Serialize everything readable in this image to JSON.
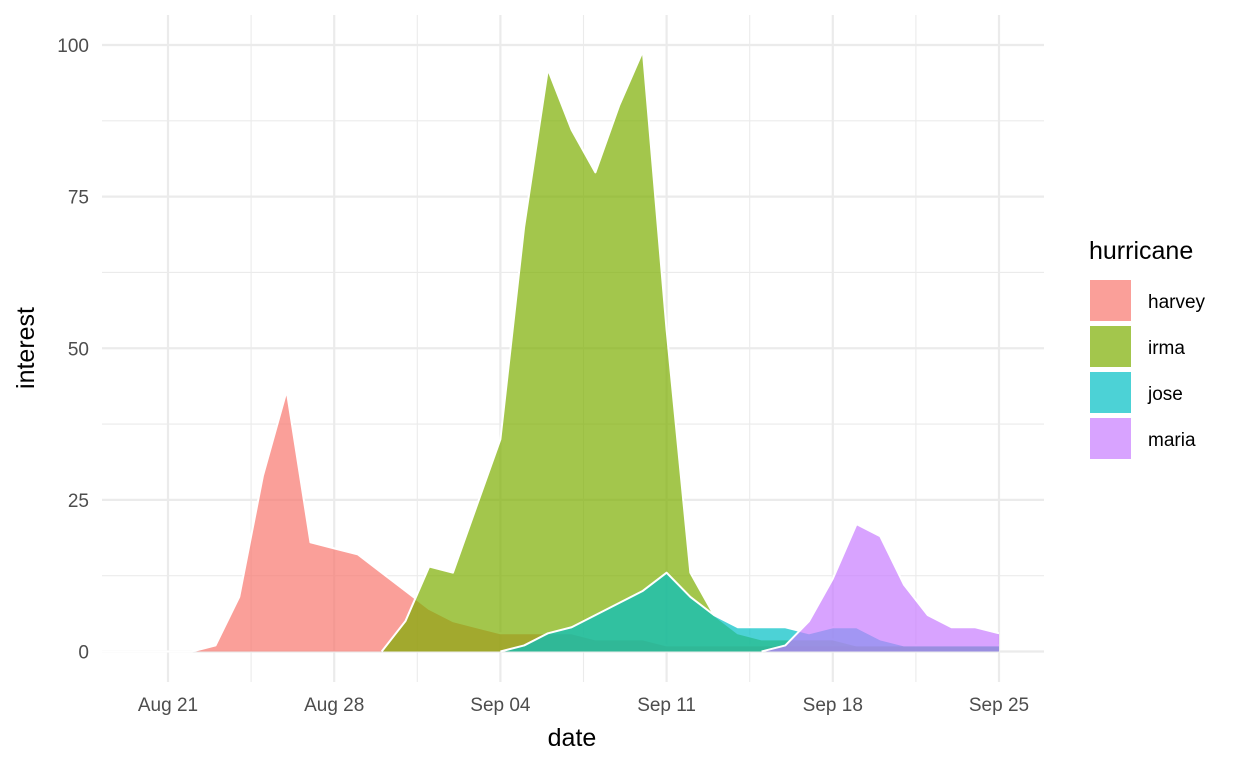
{
  "chart_data": {
    "type": "area",
    "title": "",
    "xlabel": "date",
    "ylabel": "interest",
    "xlim": [
      "2017-08-17",
      "2017-09-25"
    ],
    "ylim": [
      0,
      100
    ],
    "x_ticks": [
      {
        "date": "2017-08-21",
        "label": "Aug 21"
      },
      {
        "date": "2017-08-28",
        "label": "Aug 28"
      },
      {
        "date": "2017-09-04",
        "label": "Sep 04"
      },
      {
        "date": "2017-09-11",
        "label": "Sep 11"
      },
      {
        "date": "2017-09-18",
        "label": "Sep 18"
      },
      {
        "date": "2017-09-25",
        "label": "Sep 25"
      }
    ],
    "y_ticks": [
      {
        "value": 0,
        "label": "0"
      },
      {
        "value": 25,
        "label": "25"
      },
      {
        "value": 50,
        "label": "50"
      },
      {
        "value": 75,
        "label": "75"
      },
      {
        "value": 100,
        "label": "100"
      }
    ],
    "grid": true,
    "legend": {
      "title": "hurricane",
      "position": "right"
    },
    "series": [
      {
        "name": "harvey",
        "color": "#F8766D",
        "points": [
          [
            "2017-08-18",
            0
          ],
          [
            "2017-08-19",
            0
          ],
          [
            "2017-08-20",
            0
          ],
          [
            "2017-08-21",
            0
          ],
          [
            "2017-08-22",
            0
          ],
          [
            "2017-08-23",
            1
          ],
          [
            "2017-08-24",
            9
          ],
          [
            "2017-08-25",
            29
          ],
          [
            "2017-08-26",
            43
          ],
          [
            "2017-08-27",
            18
          ],
          [
            "2017-08-28",
            17
          ],
          [
            "2017-08-29",
            16
          ],
          [
            "2017-08-30",
            13
          ],
          [
            "2017-08-31",
            10
          ],
          [
            "2017-09-01",
            7
          ],
          [
            "2017-09-02",
            5
          ],
          [
            "2017-09-03",
            4
          ],
          [
            "2017-09-04",
            3
          ],
          [
            "2017-09-05",
            3
          ],
          [
            "2017-09-06",
            3
          ],
          [
            "2017-09-07",
            3
          ],
          [
            "2017-09-08",
            2
          ],
          [
            "2017-09-09",
            2
          ],
          [
            "2017-09-10",
            2
          ],
          [
            "2017-09-11",
            1
          ],
          [
            "2017-09-12",
            1
          ],
          [
            "2017-09-13",
            1
          ],
          [
            "2017-09-14",
            1
          ],
          [
            "2017-09-15",
            1
          ],
          [
            "2017-09-16",
            1
          ],
          [
            "2017-09-17",
            1
          ],
          [
            "2017-09-18",
            1
          ],
          [
            "2017-09-19",
            1
          ],
          [
            "2017-09-20",
            1
          ],
          [
            "2017-09-21",
            1
          ],
          [
            "2017-09-22",
            1
          ],
          [
            "2017-09-23",
            1
          ],
          [
            "2017-09-24",
            1
          ],
          [
            "2017-09-25",
            1
          ]
        ]
      },
      {
        "name": "irma",
        "color": "#7CAE00",
        "points": [
          [
            "2017-08-30",
            0
          ],
          [
            "2017-08-31",
            5
          ],
          [
            "2017-09-01",
            14
          ],
          [
            "2017-09-02",
            13
          ],
          [
            "2017-09-03",
            24
          ],
          [
            "2017-09-04",
            35
          ],
          [
            "2017-09-05",
            70
          ],
          [
            "2017-09-06",
            96
          ],
          [
            "2017-09-07",
            86
          ],
          [
            "2017-09-08",
            79
          ],
          [
            "2017-09-09",
            90
          ],
          [
            "2017-09-10",
            99
          ],
          [
            "2017-09-11",
            53
          ],
          [
            "2017-09-12",
            13
          ],
          [
            "2017-09-13",
            6
          ],
          [
            "2017-09-14",
            3
          ],
          [
            "2017-09-15",
            2
          ],
          [
            "2017-09-16",
            2
          ],
          [
            "2017-09-17",
            2
          ],
          [
            "2017-09-18",
            2
          ],
          [
            "2017-09-19",
            1
          ],
          [
            "2017-09-20",
            1
          ],
          [
            "2017-09-21",
            1
          ],
          [
            "2017-09-22",
            1
          ],
          [
            "2017-09-23",
            1
          ],
          [
            "2017-09-24",
            1
          ],
          [
            "2017-09-25",
            1
          ]
        ]
      },
      {
        "name": "jose",
        "color": "#00BFC4",
        "points": [
          [
            "2017-09-04",
            0
          ],
          [
            "2017-09-05",
            1
          ],
          [
            "2017-09-06",
            3
          ],
          [
            "2017-09-07",
            4
          ],
          [
            "2017-09-08",
            6
          ],
          [
            "2017-09-09",
            8
          ],
          [
            "2017-09-10",
            10
          ],
          [
            "2017-09-11",
            13
          ],
          [
            "2017-09-12",
            9
          ],
          [
            "2017-09-13",
            6
          ],
          [
            "2017-09-14",
            4
          ],
          [
            "2017-09-15",
            4
          ],
          [
            "2017-09-16",
            4
          ],
          [
            "2017-09-17",
            3
          ],
          [
            "2017-09-18",
            4
          ],
          [
            "2017-09-19",
            4
          ],
          [
            "2017-09-20",
            2
          ],
          [
            "2017-09-21",
            1
          ],
          [
            "2017-09-22",
            1
          ],
          [
            "2017-09-23",
            1
          ],
          [
            "2017-09-24",
            1
          ],
          [
            "2017-09-25",
            1
          ]
        ]
      },
      {
        "name": "maria",
        "color": "#C77CFF",
        "points": [
          [
            "2017-09-15",
            0
          ],
          [
            "2017-09-16",
            1
          ],
          [
            "2017-09-17",
            5
          ],
          [
            "2017-09-18",
            12
          ],
          [
            "2017-09-19",
            21
          ],
          [
            "2017-09-20",
            19
          ],
          [
            "2017-09-21",
            11
          ],
          [
            "2017-09-22",
            6
          ],
          [
            "2017-09-23",
            4
          ],
          [
            "2017-09-24",
            4
          ],
          [
            "2017-09-25",
            3
          ]
        ]
      }
    ]
  }
}
